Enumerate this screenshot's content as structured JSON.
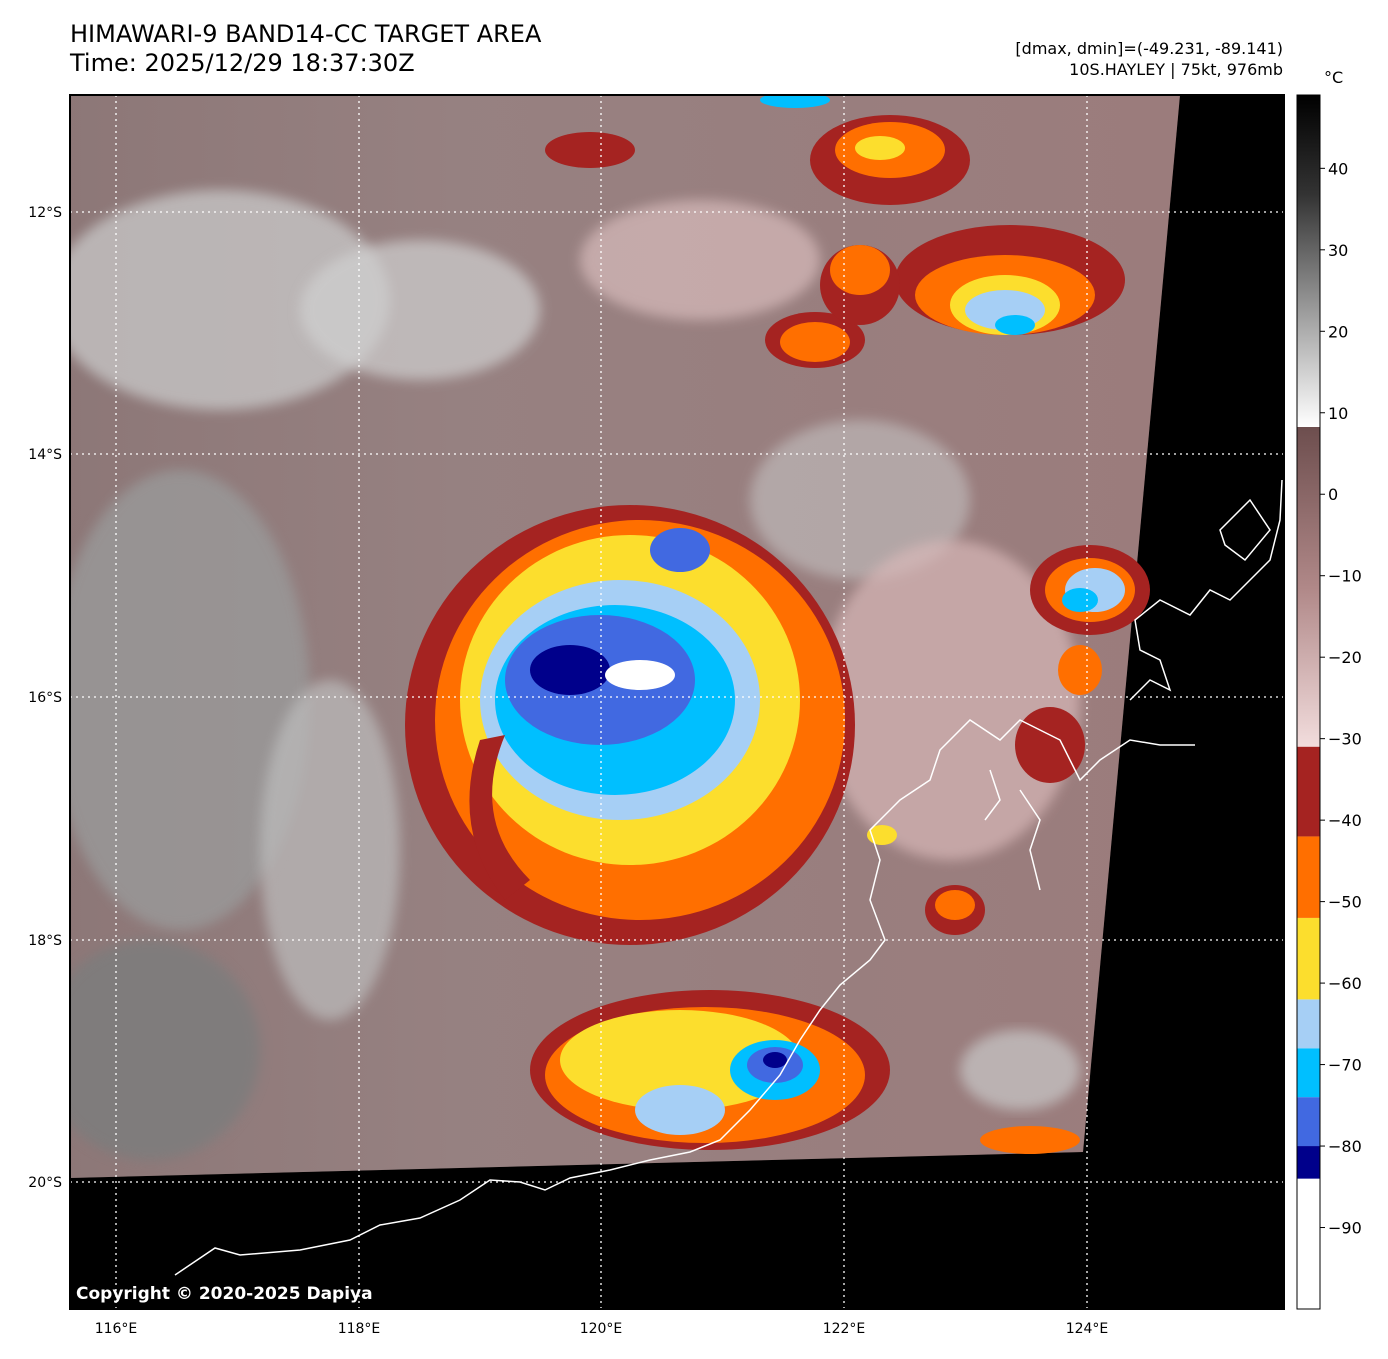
{
  "header": {
    "title_line1": "HIMAWARI-9 BAND14-CC TARGET AREA",
    "title_line2": "Time: 2025/12/29 18:37:30Z",
    "dmax_dmin": "[dmax, dmin]=(-49.231, -89.141)",
    "storm_info": "10S.HAYLEY | 75kt, 976mb"
  },
  "copyright": "Copyright © 2020-2025 Dapiya",
  "map": {
    "lon_ticks": [
      {
        "value": 116,
        "label": "116°E"
      },
      {
        "value": 118,
        "label": "118°E"
      },
      {
        "value": 120,
        "label": "120°E"
      },
      {
        "value": 122,
        "label": "122°E"
      },
      {
        "value": 124,
        "label": "124°E"
      }
    ],
    "lat_ticks": [
      {
        "value": -12,
        "label": "12°S"
      },
      {
        "value": -14,
        "label": "14°S"
      },
      {
        "value": -16,
        "label": "16°S"
      },
      {
        "value": -18,
        "label": "18°S"
      },
      {
        "value": -20,
        "label": "20°S"
      }
    ],
    "grid": true,
    "gridline_style": "dotted-white",
    "lon_range": [
      115.62,
      125.62
    ],
    "lat_range": [
      -21.05,
      -11.05
    ]
  },
  "colorbar": {
    "unit": "°C",
    "range": [
      -100,
      49
    ],
    "ticks": [
      {
        "value": 40,
        "label": "40"
      },
      {
        "value": 30,
        "label": "30"
      },
      {
        "value": 20,
        "label": "20"
      },
      {
        "value": 10,
        "label": "10"
      },
      {
        "value": 0,
        "label": "0"
      },
      {
        "value": -10,
        "label": "−10"
      },
      {
        "value": -20,
        "label": "−20"
      },
      {
        "value": -30,
        "label": "−30"
      },
      {
        "value": -40,
        "label": "−40"
      },
      {
        "value": -50,
        "label": "−50"
      },
      {
        "value": -60,
        "label": "−60"
      },
      {
        "value": -70,
        "label": "−70"
      },
      {
        "value": -80,
        "label": "−80"
      },
      {
        "value": -90,
        "label": "−90"
      }
    ],
    "bands": [
      {
        "from": -100,
        "to": -84,
        "color": "#ffffff"
      },
      {
        "from": -84,
        "to": -80,
        "color": "#00008b"
      },
      {
        "from": -80,
        "to": -74,
        "color": "#4169e1"
      },
      {
        "from": -74,
        "to": -68,
        "color": "#00bfff"
      },
      {
        "from": -68,
        "to": -62,
        "color": "#a6cff5"
      },
      {
        "from": -62,
        "to": -52,
        "color": "#fcde2d"
      },
      {
        "from": -52,
        "to": -42,
        "color": "#ff6f00"
      },
      {
        "from": -42,
        "to": -31,
        "color": "#a52321"
      }
    ]
  },
  "storm": {
    "center_lon": 120.55,
    "center_lat": -16.0
  }
}
